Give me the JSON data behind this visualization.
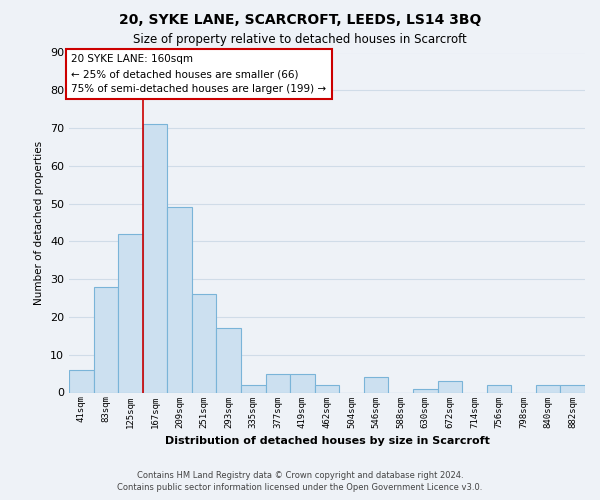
{
  "title": "20, SYKE LANE, SCARCROFT, LEEDS, LS14 3BQ",
  "subtitle": "Size of property relative to detached houses in Scarcroft",
  "xlabel": "Distribution of detached houses by size in Scarcroft",
  "ylabel": "Number of detached properties",
  "bar_color": "#cce0f0",
  "bar_edge_color": "#7ab4d8",
  "categories": [
    "41sqm",
    "83sqm",
    "125sqm",
    "167sqm",
    "209sqm",
    "251sqm",
    "293sqm",
    "335sqm",
    "377sqm",
    "419sqm",
    "462sqm",
    "504sqm",
    "546sqm",
    "588sqm",
    "630sqm",
    "672sqm",
    "714sqm",
    "756sqm",
    "798sqm",
    "840sqm",
    "882sqm"
  ],
  "values": [
    6,
    28,
    42,
    71,
    49,
    26,
    17,
    2,
    5,
    5,
    2,
    0,
    4,
    0,
    1,
    3,
    0,
    2,
    0,
    2,
    2
  ],
  "ylim": [
    0,
    90
  ],
  "yticks": [
    0,
    10,
    20,
    30,
    40,
    50,
    60,
    70,
    80,
    90
  ],
  "vline_color": "#cc0000",
  "annotation_title": "20 SYKE LANE: 160sqm",
  "annotation_line1": "← 25% of detached houses are smaller (66)",
  "annotation_line2": "75% of semi-detached houses are larger (199) →",
  "annotation_box_color": "#ffffff",
  "annotation_box_edge": "#cc0000",
  "footer1": "Contains HM Land Registry data © Crown copyright and database right 2024.",
  "footer2": "Contains public sector information licensed under the Open Government Licence v3.0.",
  "background_color": "#eef2f7",
  "grid_color": "#d0dce8"
}
